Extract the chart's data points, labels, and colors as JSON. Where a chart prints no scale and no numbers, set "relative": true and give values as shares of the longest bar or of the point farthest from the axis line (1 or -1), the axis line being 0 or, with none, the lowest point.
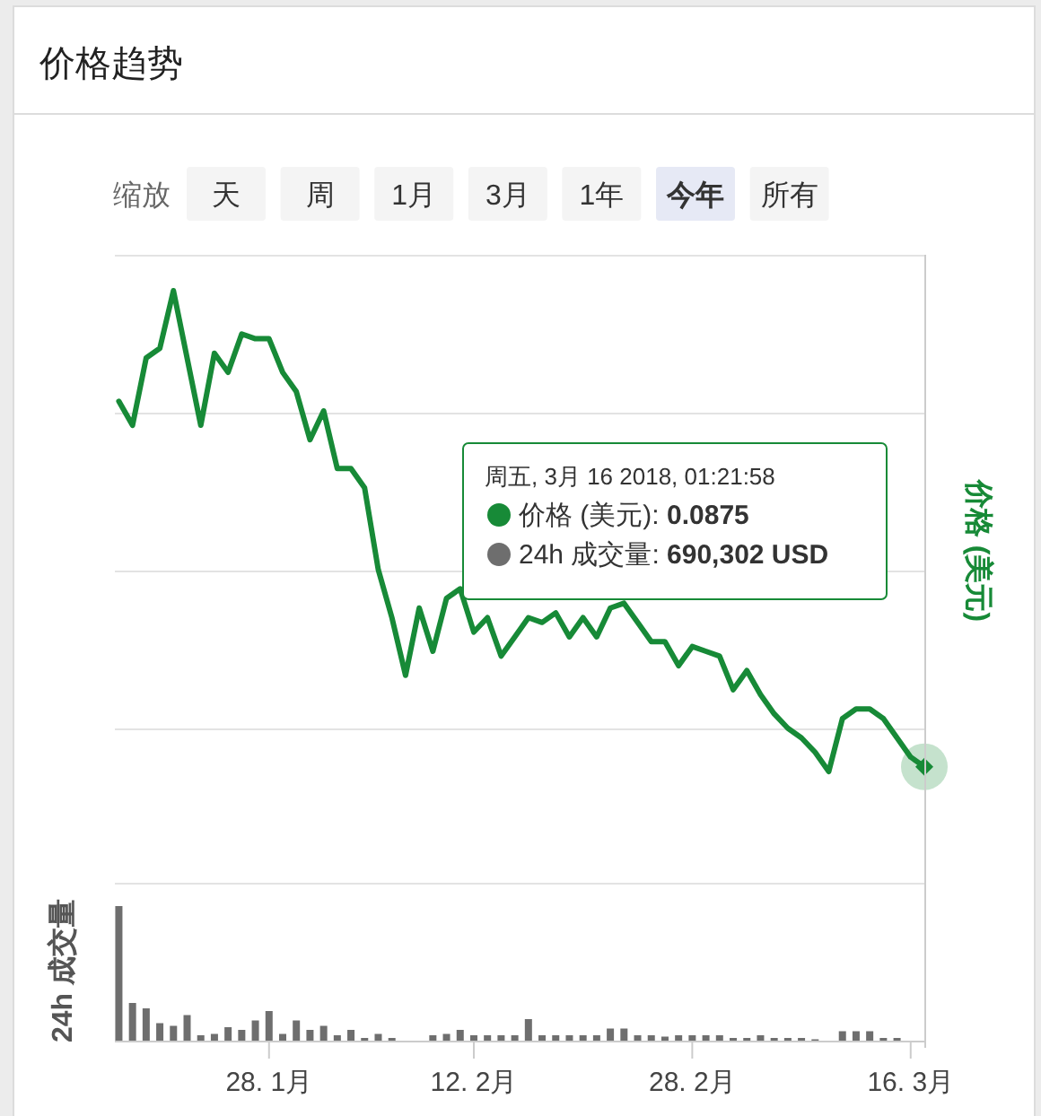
{
  "chart_data": [
    {
      "type": "other",
      "title": "价格趋势",
      "annotations": [
        "缩放",
        "天",
        "周",
        "1月",
        "3月",
        "1年",
        "**今年**",
        "所有"
      ]
    },
    {
      "type": "line",
      "ylabel": "价格 (美元)",
      "color": "#178a37",
      "relative": true,
      "grid": "y",
      "tick_labels": false,
      "xlim": [
        "2018-01-16T17:00",
        "2018-03-17"
      ],
      "x": [
        "2018-01-17",
        "2018-01-18",
        "2018-01-19",
        "2018-01-20",
        "2018-01-21",
        "2018-01-22",
        "2018-01-23",
        "2018-01-24",
        "2018-01-25",
        "2018-01-26",
        "2018-01-27",
        "2018-01-28",
        "2018-01-29",
        "2018-01-30",
        "2018-01-31",
        "2018-02-01",
        "2018-02-02",
        "2018-02-03",
        "2018-02-04",
        "2018-02-05",
        "2018-02-06",
        "2018-02-07",
        "2018-02-08",
        "2018-02-09",
        "2018-02-10",
        "2018-02-11",
        "2018-02-12",
        "2018-02-13",
        "2018-02-14",
        "2018-02-15",
        "2018-02-16",
        "2018-02-17",
        "2018-02-18",
        "2018-02-19",
        "2018-02-20",
        "2018-02-21",
        "2018-02-22",
        "2018-02-23",
        "2018-02-24",
        "2018-02-25",
        "2018-02-26",
        "2018-02-27",
        "2018-02-28",
        "2018-03-01",
        "2018-03-02",
        "2018-03-03",
        "2018-03-04",
        "2018-03-05",
        "2018-03-06",
        "2018-03-07",
        "2018-03-08",
        "2018-03-09",
        "2018-03-10",
        "2018-03-11",
        "2018-03-12",
        "2018-03-13",
        "2018-03-14",
        "2018-03-15",
        "2018-03-16",
        "2018-03-17"
      ],
      "values": [
        0.77,
        0.72,
        0.86,
        0.88,
        1.0,
        0.86,
        0.72,
        0.87,
        0.83,
        0.91,
        0.9,
        0.9,
        0.83,
        0.79,
        0.69,
        0.75,
        0.63,
        0.63,
        0.59,
        0.42,
        0.32,
        0.2,
        0.34,
        0.25,
        0.36,
        0.38,
        0.29,
        0.32,
        0.24,
        0.28,
        0.32,
        0.31,
        0.33,
        0.28,
        0.32,
        0.28,
        0.34,
        0.35,
        0.31,
        0.27,
        0.27,
        0.22,
        0.26,
        0.25,
        0.24,
        0.17,
        0.21,
        0.16,
        0.12,
        0.09,
        0.07,
        0.04,
        0,
        0.11,
        0.13,
        0.13,
        0.11,
        0.07,
        0.03,
        0.01
      ],
      "annotations": [
        "周五, 3月 16 2018, 01:21:58",
        "价格 (美元): **0.0875**",
        "24h 成交量: **690,302 USD**"
      ]
    },
    {
      "type": "bar",
      "ylabel": "24h 成交量",
      "color": "#6e6e6e",
      "relative": true,
      "tick_labels": "x",
      "xlim": [
        "2018-01-16T17:00",
        "2018-03-17"
      ],
      "xticks": [
        {
          "value": "2018-01-28",
          "label": "28. 1月"
        },
        {
          "value": "2018-02-12",
          "label": "12. 2月"
        },
        {
          "value": "2018-02-28",
          "label": "28. 2月"
        },
        {
          "value": "2018-03-16",
          "label": "16. 3月"
        }
      ],
      "x": [
        "2018-01-17",
        "2018-01-18",
        "2018-01-19",
        "2018-01-20",
        "2018-01-21",
        "2018-01-22",
        "2018-01-23",
        "2018-01-24",
        "2018-01-25",
        "2018-01-26",
        "2018-01-27",
        "2018-01-28",
        "2018-01-29",
        "2018-01-30",
        "2018-01-31",
        "2018-02-01",
        "2018-02-02",
        "2018-02-03",
        "2018-02-04",
        "2018-02-05",
        "2018-02-06",
        "2018-02-09",
        "2018-02-10",
        "2018-02-11",
        "2018-02-12",
        "2018-02-13",
        "2018-02-14",
        "2018-02-15",
        "2018-02-16",
        "2018-02-17",
        "2018-02-18",
        "2018-02-19",
        "2018-02-20",
        "2018-02-21",
        "2018-02-22",
        "2018-02-23",
        "2018-02-24",
        "2018-02-25",
        "2018-02-26",
        "2018-02-27",
        "2018-02-28",
        "2018-03-01",
        "2018-03-02",
        "2018-03-03",
        "2018-03-04",
        "2018-03-05",
        "2018-03-06",
        "2018-03-07",
        "2018-03-08",
        "2018-03-09",
        "2018-03-11",
        "2018-03-12",
        "2018-03-13",
        "2018-03-14",
        "2018-03-15"
      ],
      "values": [
        1.0,
        0.28,
        0.24,
        0.13,
        0.11,
        0.19,
        0.04,
        0.05,
        0.1,
        0.08,
        0.15,
        0.22,
        0.05,
        0.15,
        0.08,
        0.11,
        0.04,
        0.08,
        0.02,
        0.05,
        0.02,
        0.04,
        0.05,
        0.08,
        0.04,
        0.04,
        0.04,
        0.04,
        0.16,
        0.04,
        0.04,
        0.04,
        0.04,
        0.04,
        0.09,
        0.09,
        0.04,
        0.04,
        0.03,
        0.04,
        0.04,
        0.04,
        0.04,
        0.02,
        0.02,
        0.04,
        0.02,
        0.02,
        0.02,
        0.01,
        0.07,
        0.07,
        0.07,
        0.02,
        0.02
      ]
    }
  ]
}
